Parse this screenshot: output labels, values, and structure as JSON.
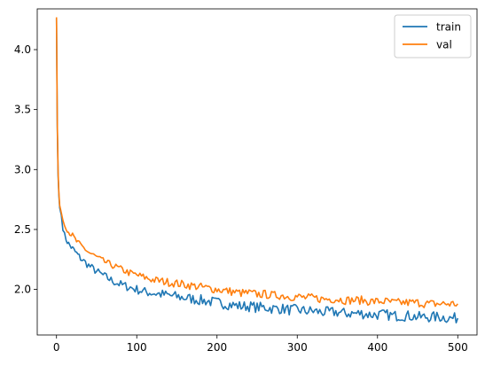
{
  "chart_data": {
    "type": "line",
    "title": "",
    "xlabel": "",
    "ylabel": "",
    "xlim": [
      -24,
      524
    ],
    "ylim": [
      1.62,
      4.34
    ],
    "xticks": [
      0,
      100,
      200,
      300,
      400,
      500
    ],
    "yticks": [
      2.0,
      2.5,
      3.0,
      3.5,
      4.0
    ],
    "ytick_labels": [
      "2.0",
      "2.5",
      "3.0",
      "3.5",
      "4.0"
    ],
    "grid": false,
    "legend_position": "top-right",
    "series": [
      {
        "name": "train",
        "color": "#1f77b4",
        "x": [
          0,
          1,
          2,
          3,
          4,
          5,
          6,
          8,
          10,
          12,
          15,
          20,
          25,
          30,
          40,
          50,
          60,
          70,
          80,
          90,
          100,
          110,
          120,
          130,
          140,
          150,
          160,
          170,
          180,
          190,
          200,
          210,
          220,
          230,
          240,
          250,
          260,
          270,
          280,
          290,
          300,
          310,
          320,
          330,
          340,
          350,
          360,
          370,
          380,
          390,
          400,
          410,
          420,
          430,
          440,
          450,
          460,
          470,
          480,
          490,
          500
        ],
        "y": [
          4.26,
          3.35,
          2.95,
          2.78,
          2.68,
          2.65,
          2.62,
          2.52,
          2.45,
          2.42,
          2.38,
          2.34,
          2.3,
          2.26,
          2.2,
          2.15,
          2.11,
          2.07,
          2.04,
          2.02,
          2.0,
          1.98,
          1.97,
          1.96,
          1.95,
          1.94,
          1.93,
          1.92,
          1.91,
          1.9,
          1.89,
          1.88,
          1.87,
          1.86,
          1.86,
          1.85,
          1.85,
          1.84,
          1.84,
          1.83,
          1.83,
          1.82,
          1.82,
          1.81,
          1.81,
          1.81,
          1.8,
          1.8,
          1.8,
          1.79,
          1.79,
          1.79,
          1.78,
          1.78,
          1.78,
          1.77,
          1.77,
          1.77,
          1.77,
          1.76,
          1.76
        ]
      },
      {
        "name": "val",
        "color": "#ff7f0e",
        "x": [
          0,
          1,
          2,
          3,
          4,
          5,
          6,
          8,
          10,
          12,
          15,
          20,
          25,
          30,
          40,
          50,
          60,
          70,
          80,
          90,
          100,
          110,
          120,
          130,
          140,
          150,
          160,
          170,
          180,
          190,
          200,
          210,
          220,
          230,
          240,
          250,
          260,
          270,
          280,
          290,
          300,
          310,
          320,
          330,
          340,
          350,
          360,
          370,
          380,
          390,
          400,
          410,
          420,
          430,
          440,
          450,
          460,
          470,
          480,
          490,
          500
        ],
        "y": [
          4.27,
          3.38,
          2.98,
          2.8,
          2.7,
          2.67,
          2.64,
          2.58,
          2.54,
          2.52,
          2.48,
          2.45,
          2.4,
          2.37,
          2.31,
          2.27,
          2.23,
          2.2,
          2.17,
          2.14,
          2.12,
          2.1,
          2.08,
          2.07,
          2.06,
          2.05,
          2.04,
          2.03,
          2.02,
          2.01,
          2.0,
          1.99,
          1.98,
          1.97,
          1.97,
          1.96,
          1.96,
          1.95,
          1.95,
          1.94,
          1.94,
          1.93,
          1.93,
          1.92,
          1.92,
          1.92,
          1.91,
          1.91,
          1.91,
          1.9,
          1.9,
          1.9,
          1.89,
          1.89,
          1.89,
          1.89,
          1.88,
          1.88,
          1.88,
          1.88,
          1.88
        ]
      }
    ]
  }
}
